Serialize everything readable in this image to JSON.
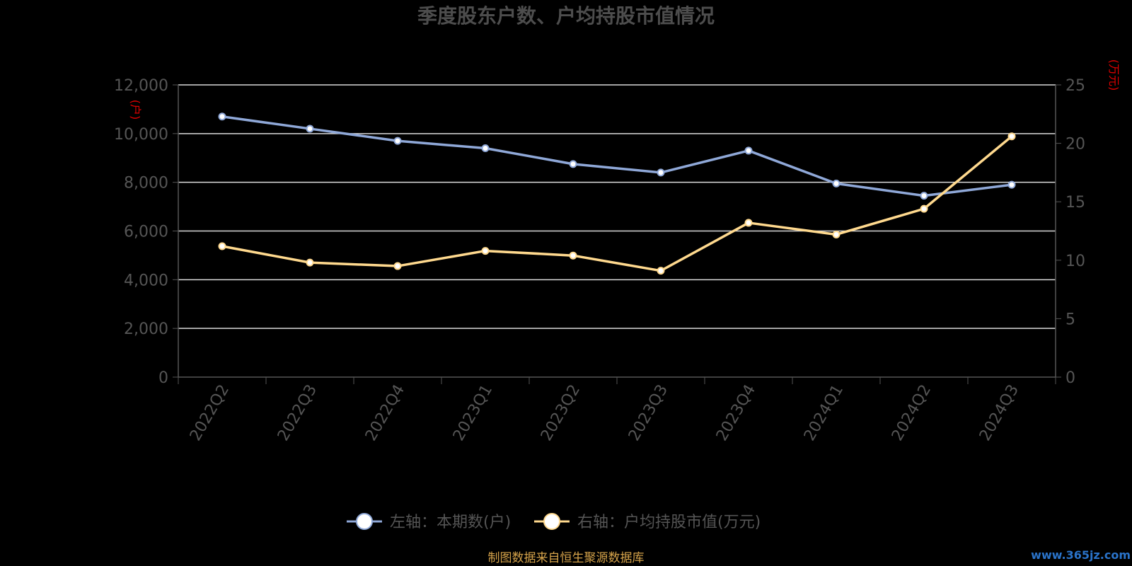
{
  "chart_data": {
    "type": "line",
    "title": "季度股东户数、户均持股市值情况",
    "categories": [
      "2022Q2",
      "2022Q3",
      "2022Q4",
      "2023Q1",
      "2023Q2",
      "2023Q3",
      "2023Q4",
      "2024Q1",
      "2024Q2",
      "2024Q3"
    ],
    "y_left": {
      "unit": "(户)",
      "ticks": [
        "0",
        "2,000",
        "4,000",
        "6,000",
        "8,000",
        "10,000",
        "12,000"
      ],
      "ylim": [
        0,
        12000
      ]
    },
    "y_right": {
      "unit": "(万元)",
      "ticks": [
        "0",
        "5",
        "10",
        "15",
        "20",
        "25"
      ],
      "ylim": [
        0,
        25
      ]
    },
    "grid": true,
    "legend_position": "bottom-center",
    "series": [
      {
        "name": "左轴：本期数(户)",
        "axis": "left",
        "color": "#8fa8d8",
        "values": [
          10700,
          10200,
          9700,
          9400,
          8750,
          8400,
          9300,
          7950,
          7450,
          7900
        ]
      },
      {
        "name": "右轴：户均持股市值(万元)",
        "axis": "right",
        "color": "#ffd98e",
        "values": [
          11.2,
          9.8,
          9.5,
          10.8,
          10.4,
          9.1,
          13.2,
          12.2,
          14.4,
          20.6
        ]
      }
    ]
  },
  "footer": {
    "source": "制图数据来自恒生聚源数据库",
    "watermark": "www.365jz.com"
  }
}
